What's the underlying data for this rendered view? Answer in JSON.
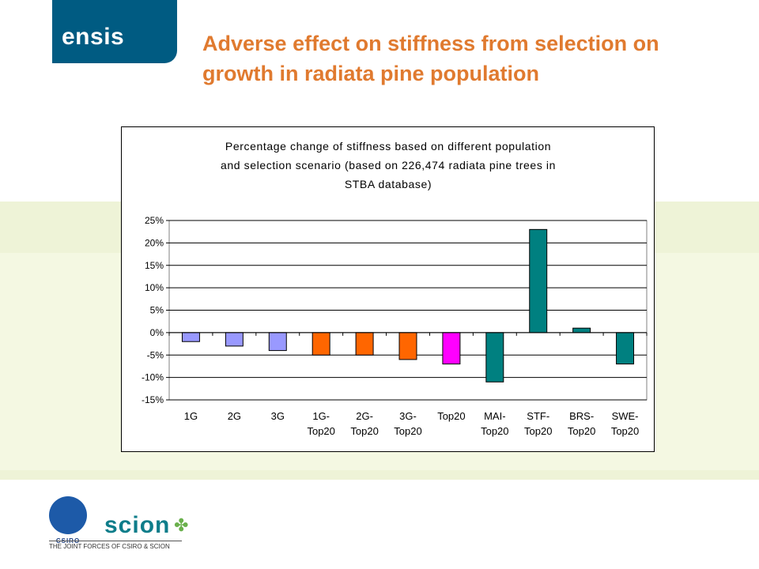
{
  "logo": {
    "text": "ensis"
  },
  "slide_title": "Adverse effect on stiffness from selection on growth in radiata pine population",
  "footer": {
    "csiro_label": "CSIRO",
    "scion_label": "scion",
    "joint_text": "THE JOINT FORCES OF CSIRO & SCION"
  },
  "colors": {
    "brand_blue": "#005b82",
    "title_orange": "#e07a2f",
    "band_green": "#f4f8e2"
  },
  "chart_data": {
    "type": "bar",
    "title_lines": [
      "Percentage change of stiffness based on different population",
      "and selection scenario (based on 226,474 radiata pine trees in",
      "STBA database)"
    ],
    "xlabel": "",
    "ylabel": "",
    "ylim": [
      -15,
      25
    ],
    "yticks": [
      25,
      20,
      15,
      10,
      5,
      0,
      -5,
      -10,
      -15
    ],
    "ytick_labels": [
      "25%",
      "20%",
      "15%",
      "10%",
      "5%",
      "0%",
      "-5%",
      "-10%",
      "-15%"
    ],
    "grid": true,
    "legend": "none",
    "categories": [
      [
        "1G"
      ],
      [
        "2G"
      ],
      [
        "3G"
      ],
      [
        "1G-",
        "Top20"
      ],
      [
        "2G-",
        "Top20"
      ],
      [
        "3G-",
        "Top20"
      ],
      [
        "Top20"
      ],
      [
        "MAI-",
        "Top20"
      ],
      [
        "STF-",
        "Top20"
      ],
      [
        "BRS-",
        "Top20"
      ],
      [
        "SWE-",
        "Top20"
      ]
    ],
    "values": [
      -2,
      -3,
      -4,
      -5,
      -5,
      -6,
      -7,
      -11,
      23,
      1,
      -7
    ],
    "bar_colors": [
      "#9999ff",
      "#9999ff",
      "#9999ff",
      "#ff6600",
      "#ff6600",
      "#ff6600",
      "#ff00ff",
      "#008080",
      "#008080",
      "#008080",
      "#008080"
    ]
  }
}
